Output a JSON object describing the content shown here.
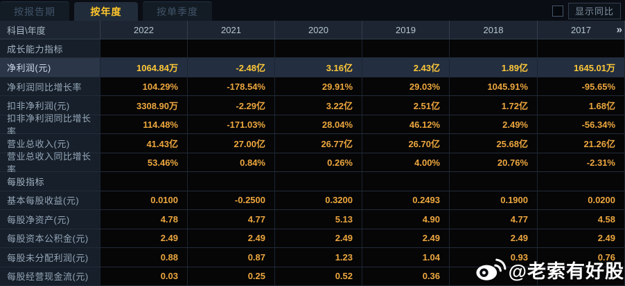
{
  "tabs": [
    {
      "label": "按报告期",
      "active": false
    },
    {
      "label": "按年度",
      "active": true
    },
    {
      "label": "按单季度",
      "active": false
    }
  ],
  "controls": {
    "show_yoy_label": "显示同比",
    "checkbox_checked": false
  },
  "table": {
    "corner_label": "科目\\年度",
    "years": [
      "2022",
      "2021",
      "2020",
      "2019",
      "2018",
      "2017"
    ],
    "more_years_icon": "»",
    "rows": [
      {
        "label": "成长能力指标",
        "type": "section",
        "values": [
          "",
          "",
          "",
          "",
          "",
          ""
        ]
      },
      {
        "label": "净利润(元)",
        "type": "highlight",
        "values": [
          "1064.84万",
          "-2.48亿",
          "3.16亿",
          "2.43亿",
          "1.89亿",
          "1645.01万"
        ]
      },
      {
        "label": "净利润同比增长率",
        "type": "data",
        "values": [
          "104.29%",
          "-178.54%",
          "29.91%",
          "29.03%",
          "1045.91%",
          "-95.65%"
        ]
      },
      {
        "label": "扣非净利润(元)",
        "type": "data",
        "values": [
          "3308.90万",
          "-2.29亿",
          "3.22亿",
          "2.51亿",
          "1.72亿",
          "1.68亿"
        ]
      },
      {
        "label": "扣非净利润同比增长率",
        "type": "data",
        "values": [
          "114.48%",
          "-171.03%",
          "28.04%",
          "46.12%",
          "2.49%",
          "-56.34%"
        ]
      },
      {
        "label": "营业总收入(元)",
        "type": "data",
        "values": [
          "41.43亿",
          "27.00亿",
          "26.77亿",
          "26.70亿",
          "25.68亿",
          "21.26亿"
        ]
      },
      {
        "label": "营业总收入同比增长率",
        "type": "data",
        "values": [
          "53.46%",
          "0.84%",
          "0.26%",
          "4.00%",
          "20.76%",
          "-2.31%"
        ]
      },
      {
        "label": "每股指标",
        "type": "section",
        "values": [
          "",
          "",
          "",
          "",
          "",
          ""
        ]
      },
      {
        "label": "基本每股收益(元)",
        "type": "data",
        "values": [
          "0.0100",
          "-0.2500",
          "0.3200",
          "0.2493",
          "0.1900",
          "0.0200"
        ]
      },
      {
        "label": "每股净资产(元)",
        "type": "data",
        "values": [
          "4.78",
          "4.77",
          "5.13",
          "4.90",
          "4.77",
          "4.58"
        ]
      },
      {
        "label": "每股资本公积金(元)",
        "type": "data",
        "values": [
          "2.49",
          "2.49",
          "2.49",
          "2.49",
          "2.49",
          "2.49"
        ]
      },
      {
        "label": "每股未分配利润(元)",
        "type": "data",
        "values": [
          "0.88",
          "0.87",
          "1.23",
          "1.04",
          "0.93",
          "0.76"
        ]
      },
      {
        "label": "每股经营现金流(元)",
        "type": "data",
        "values": [
          "0.03",
          "0.25",
          "0.52",
          "0.36",
          "",
          ""
        ]
      }
    ]
  },
  "watermark": {
    "icon": "weibo-logo",
    "text": "@老索有好股"
  },
  "colors": {
    "accent_gold": "#eda73e",
    "highlight_gold": "#ffc838",
    "active_tab_text": "#ffc62c",
    "header_bg": "#1c2531",
    "label_col_bg": "#161f2a",
    "value_cell_bg": "#060607",
    "highlight_row_bg": "#232e40"
  }
}
